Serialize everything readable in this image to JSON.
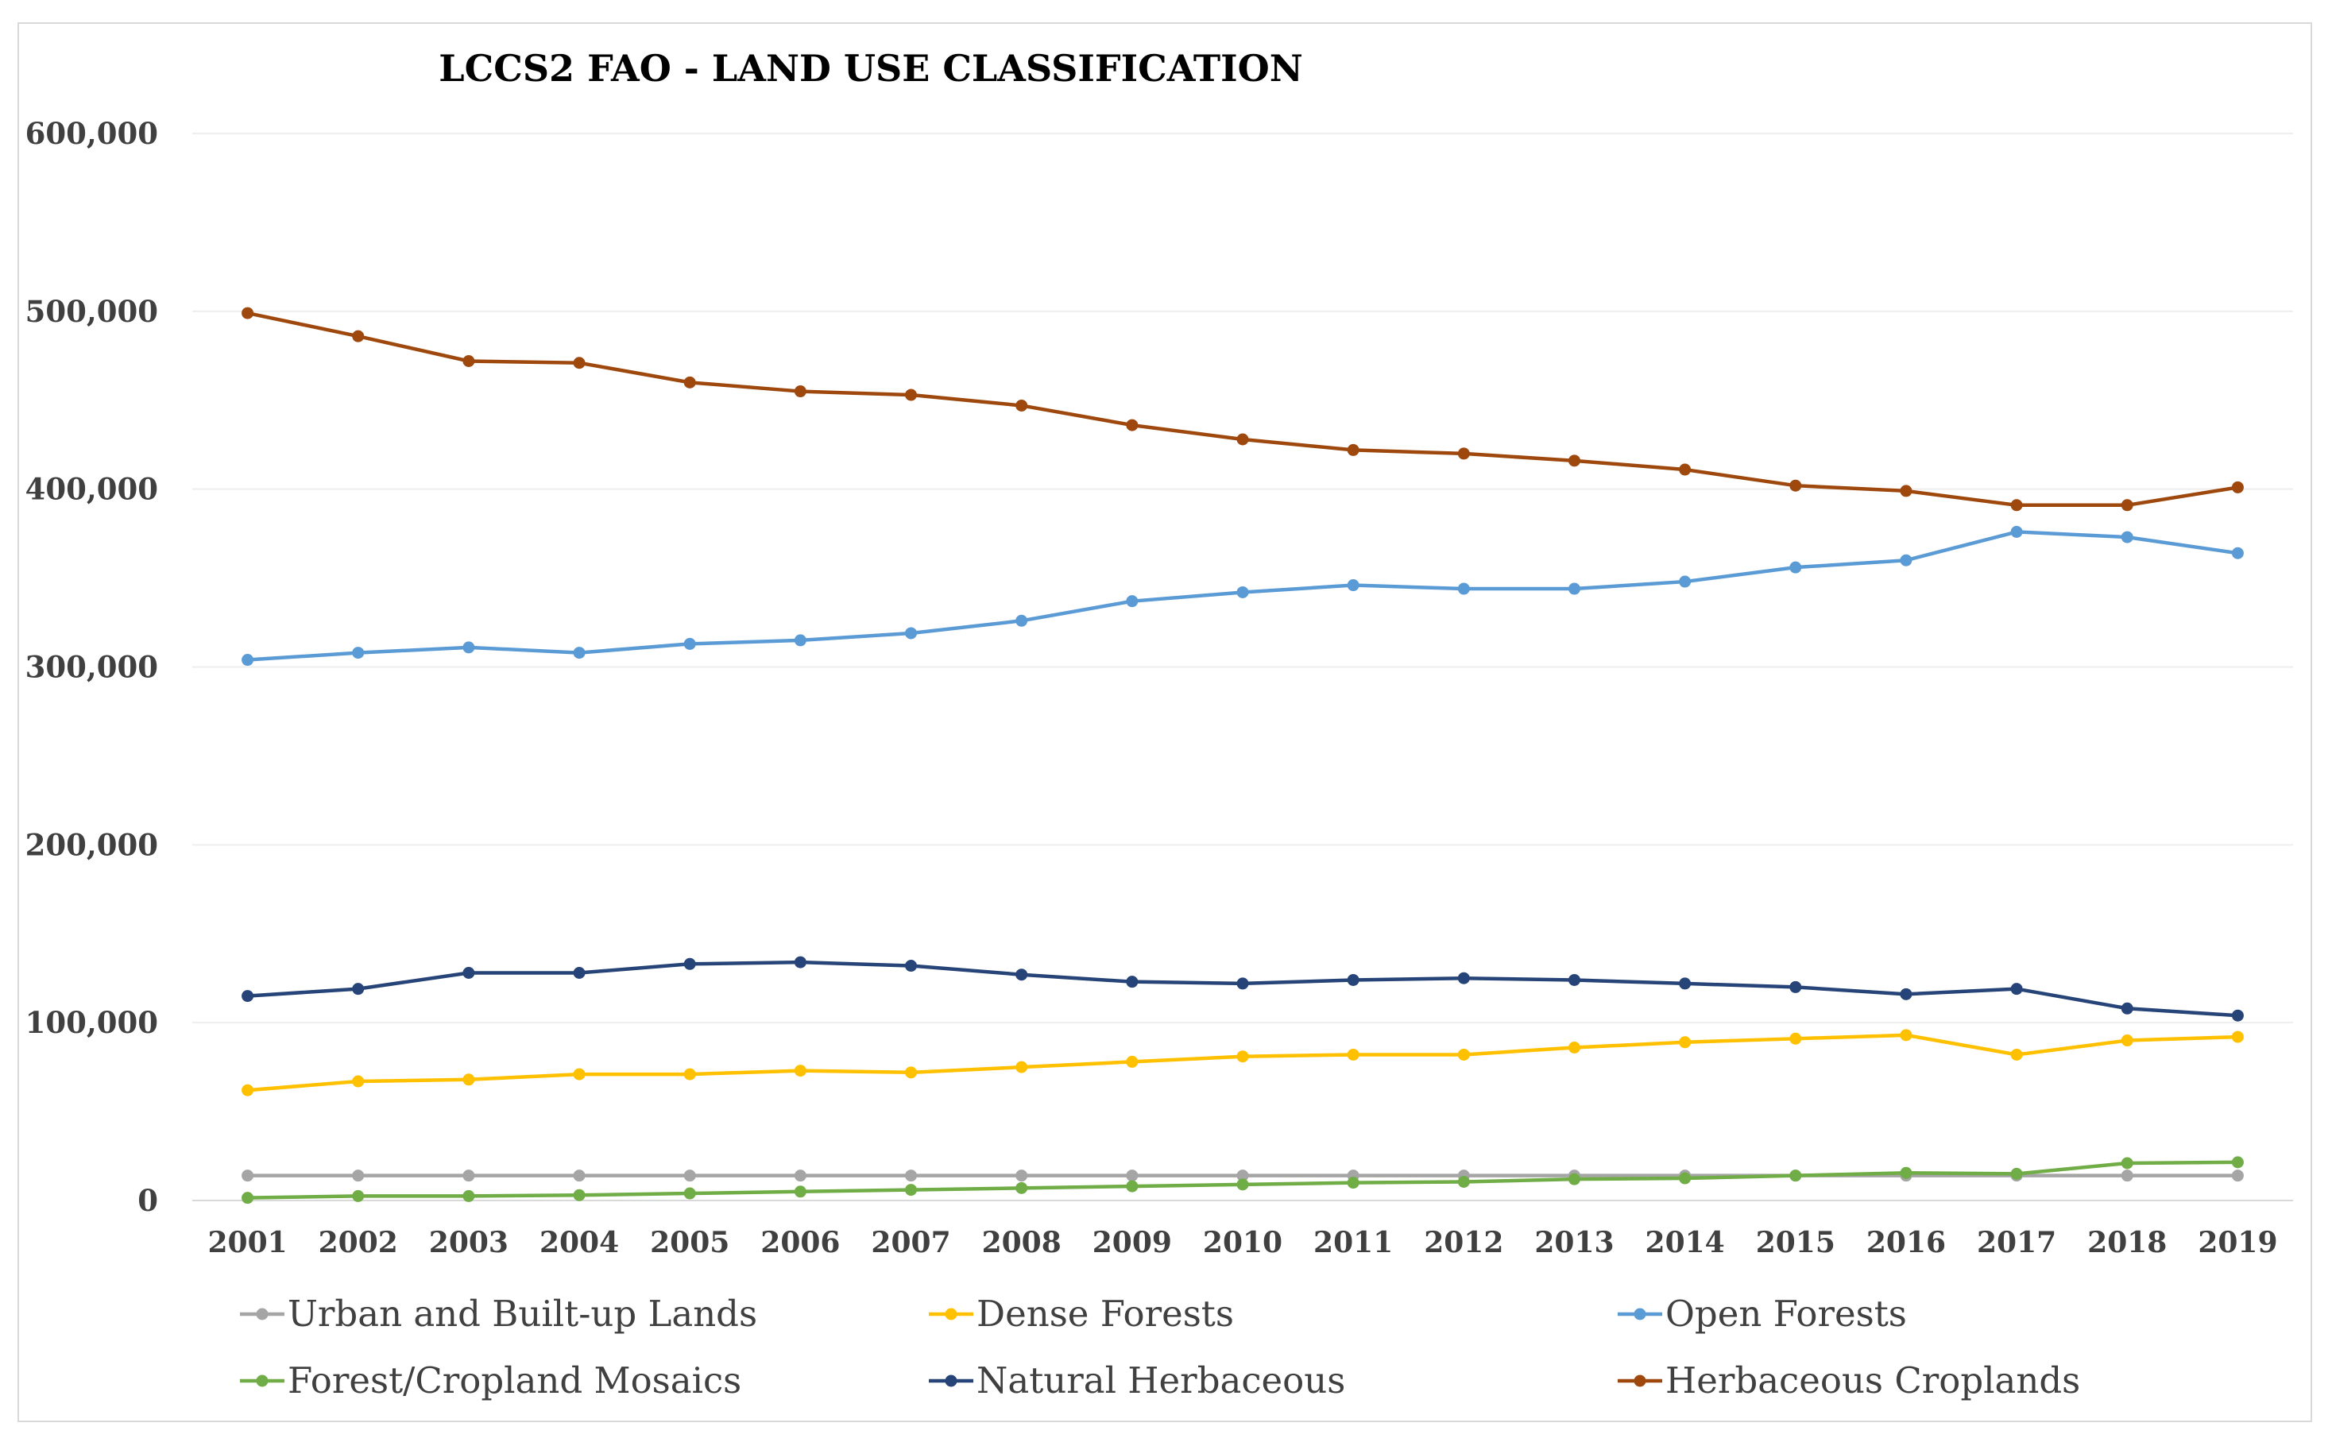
{
  "chart_data": {
    "type": "line",
    "title": "LCCS2 FAO - LAND USE CLASSIFICATION",
    "xlabel": "",
    "ylabel": "",
    "ylim": [
      0,
      600000
    ],
    "yticks": [
      {
        "value": 0,
        "label": "0"
      },
      {
        "value": 100000,
        "label": "100,000"
      },
      {
        "value": 200000,
        "label": "200,000"
      },
      {
        "value": 300000,
        "label": "300,000"
      },
      {
        "value": 400000,
        "label": "400,000"
      },
      {
        "value": 500000,
        "label": "500,000"
      },
      {
        "value": 600000,
        "label": "600,000"
      }
    ],
    "grid": true,
    "legend_position": "bottom",
    "categories": [
      "2001",
      "2002",
      "2003",
      "2004",
      "2005",
      "2006",
      "2007",
      "2008",
      "2009",
      "2010",
      "2011",
      "2012",
      "2013",
      "2014",
      "2015",
      "2016",
      "2017",
      "2018",
      "2019"
    ],
    "series": [
      {
        "name": "Urban and Built-up Lands",
        "color": "#a5a5a5",
        "values": [
          14000,
          14000,
          14000,
          14000,
          14000,
          14000,
          14000,
          14000,
          14000,
          14000,
          14000,
          14000,
          14000,
          14000,
          14000,
          14000,
          14000,
          14000,
          14000
        ]
      },
      {
        "name": "Dense Forests",
        "color": "#ffc000",
        "values": [
          62000,
          67000,
          68000,
          71000,
          71000,
          73000,
          72000,
          75000,
          78000,
          81000,
          82000,
          82000,
          86000,
          89000,
          91000,
          93000,
          82000,
          90000,
          92000
        ]
      },
      {
        "name": "Open Forests",
        "color": "#5b9bd5",
        "values": [
          304000,
          308000,
          311000,
          308000,
          313000,
          315000,
          319000,
          326000,
          337000,
          342000,
          346000,
          344000,
          344000,
          348000,
          356000,
          360000,
          376000,
          373000,
          364000
        ]
      },
      {
        "name": "Forest/Cropland Mosaics",
        "color": "#70ad47",
        "values": [
          1500,
          2500,
          2500,
          3000,
          4000,
          5000,
          6000,
          7000,
          8000,
          9000,
          10000,
          10500,
          12000,
          12500,
          14000,
          15500,
          15000,
          21000,
          21500
        ]
      },
      {
        "name": "Natural Herbaceous",
        "color": "#264478",
        "values": [
          115000,
          119000,
          128000,
          128000,
          133000,
          134000,
          132000,
          127000,
          123000,
          122000,
          124000,
          125000,
          124000,
          122000,
          120000,
          116000,
          119000,
          108000,
          104000
        ]
      },
      {
        "name": "Herbaceous Croplands",
        "color": "#9e480e",
        "values": [
          499000,
          486000,
          472000,
          471000,
          460000,
          455000,
          453000,
          447000,
          436000,
          428000,
          422000,
          420000,
          416000,
          411000,
          402000,
          399000,
          391000,
          391000,
          401000
        ]
      }
    ]
  }
}
